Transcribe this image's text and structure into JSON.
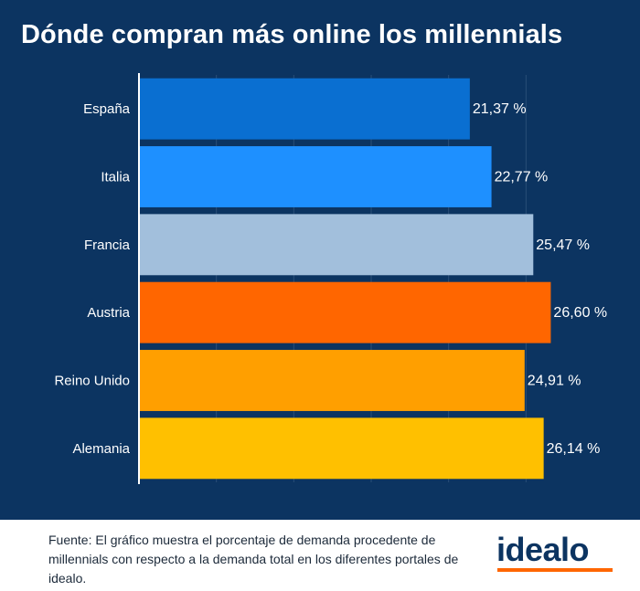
{
  "chart_data": {
    "type": "bar",
    "orientation": "horizontal",
    "title": "Dónde compran más online los millennials",
    "xlabel": "",
    "ylabel": "",
    "categories": [
      "España",
      "Italia",
      "Francia",
      "Austria",
      "Reino Unido",
      "Alemania"
    ],
    "values": [
      21.37,
      22.77,
      25.47,
      26.6,
      24.91,
      26.14
    ],
    "value_labels": [
      "21,37 %",
      "22,77 %",
      "25,47 %",
      "26,60 %",
      "24,91 %",
      "26,14 %"
    ],
    "colors": [
      "#0a6fd1",
      "#1e90ff",
      "#a2bfdc",
      "#ff6600",
      "#ff9f00",
      "#ffc000"
    ],
    "xlim": [
      0,
      30
    ],
    "grid": true,
    "legend": "none"
  },
  "footer": {
    "source_note": "Fuente: El gráfico muestra el porcentaje de demanda procedente de millennials con respecto a la demanda total en los diferentes portales de idealo.",
    "logo_text": "idealo"
  },
  "theme": {
    "background": "#0c3461",
    "brand_orange": "#ff6600"
  }
}
